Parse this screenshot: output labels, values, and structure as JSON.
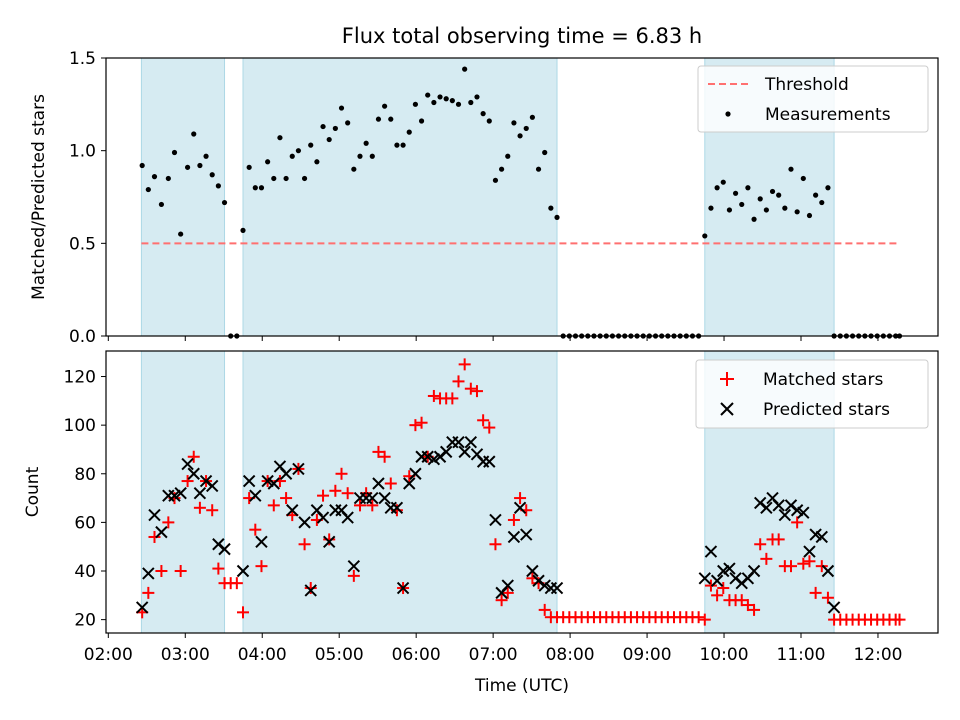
{
  "figure": {
    "title": "Flux total observing time = 6.83 h",
    "xlabel": "Time (UTC)",
    "x_tick_labels": [
      "02:00",
      "03:00",
      "04:00",
      "05:00",
      "06:00",
      "07:00",
      "08:00",
      "09:00",
      "10:00",
      "11:00",
      "12:00"
    ],
    "x_tick_values": [
      2,
      3,
      4,
      5,
      6,
      7,
      8,
      9,
      10,
      11,
      12
    ],
    "xlim": [
      1.97,
      12.78
    ],
    "shaded_intervals": [
      [
        2.43,
        3.51
      ],
      [
        3.75,
        7.83
      ],
      [
        9.75,
        11.43
      ]
    ],
    "shade_color": "#add8e6"
  },
  "chart_data": [
    {
      "type": "scatter",
      "name": "ratio-panel",
      "ylabel": "Matched/Predicted stars",
      "ylim": [
        0,
        1.5
      ],
      "y_ticks": [
        0.0,
        0.5,
        1.0,
        1.5
      ],
      "y_tick_labels": [
        "0.0",
        "0.5",
        "1.0",
        "1.5"
      ],
      "legend_position": "top-right",
      "threshold": {
        "name": "Threshold",
        "value": 0.5,
        "x_range": [
          2.43,
          12.28
        ],
        "color": "#ff7070"
      },
      "measurements": {
        "name": "Measurements",
        "color": "#000000",
        "x": [
          2.44,
          2.52,
          2.6,
          2.69,
          2.78,
          2.86,
          2.94,
          3.03,
          3.11,
          3.19,
          3.27,
          3.35,
          3.43,
          3.51,
          3.59,
          3.67,
          3.75,
          3.83,
          3.91,
          3.99,
          4.07,
          4.15,
          4.23,
          4.31,
          4.39,
          4.47,
          4.55,
          4.63,
          4.71,
          4.79,
          4.87,
          4.95,
          5.03,
          5.11,
          5.19,
          5.27,
          5.35,
          5.43,
          5.51,
          5.59,
          5.67,
          5.75,
          5.83,
          5.91,
          5.99,
          6.07,
          6.15,
          6.23,
          6.31,
          6.39,
          6.47,
          6.55,
          6.63,
          6.71,
          6.79,
          6.87,
          6.95,
          7.03,
          7.11,
          7.19,
          7.27,
          7.35,
          7.43,
          7.51,
          7.59,
          7.67,
          7.75,
          7.83,
          7.91,
          7.99,
          8.07,
          8.15,
          8.23,
          8.31,
          8.39,
          8.47,
          8.55,
          8.63,
          8.71,
          8.79,
          8.87,
          8.95,
          9.03,
          9.11,
          9.19,
          9.27,
          9.35,
          9.43,
          9.51,
          9.59,
          9.67,
          9.75,
          9.83,
          9.91,
          9.99,
          10.07,
          10.15,
          10.23,
          10.31,
          10.39,
          10.47,
          10.55,
          10.63,
          10.71,
          10.79,
          10.87,
          10.95,
          11.03,
          11.11,
          11.19,
          11.27,
          11.35,
          11.43,
          11.51,
          11.59,
          11.67,
          11.75,
          11.83,
          11.91,
          11.99,
          12.07,
          12.15,
          12.23,
          12.28
        ],
        "y": [
          0.92,
          0.79,
          0.86,
          0.71,
          0.85,
          0.99,
          0.55,
          0.91,
          1.09,
          0.92,
          0.97,
          0.87,
          0.81,
          0.72,
          0.0,
          0.0,
          0.57,
          0.91,
          0.8,
          0.8,
          0.94,
          0.85,
          1.07,
          0.85,
          0.97,
          1.0,
          0.85,
          1.03,
          0.94,
          1.13,
          1.06,
          1.12,
          1.23,
          1.15,
          0.9,
          0.97,
          1.04,
          0.97,
          1.17,
          1.24,
          1.17,
          1.03,
          1.03,
          1.1,
          1.25,
          1.16,
          1.3,
          1.26,
          1.29,
          1.28,
          1.27,
          1.25,
          1.44,
          1.26,
          1.29,
          1.2,
          1.16,
          0.84,
          0.9,
          0.97,
          1.15,
          1.08,
          1.12,
          1.18,
          0.9,
          0.99,
          0.69,
          0.64,
          0.0,
          0.0,
          0.0,
          0.0,
          0.0,
          0.0,
          0.0,
          0.0,
          0.0,
          0.0,
          0.0,
          0.0,
          0.0,
          0.0,
          0.0,
          0.0,
          0.0,
          0.0,
          0.0,
          0.0,
          0.0,
          0.0,
          0.0,
          0.54,
          0.69,
          0.8,
          0.83,
          0.68,
          0.77,
          0.71,
          0.8,
          0.63,
          0.74,
          0.68,
          0.78,
          0.76,
          0.69,
          0.9,
          0.67,
          0.85,
          0.65,
          0.76,
          0.72,
          0.8,
          0.0,
          0.0,
          0.0,
          0.0,
          0.0,
          0.0,
          0.0,
          0.0,
          0.0,
          0.0,
          0.0,
          0.0
        ]
      }
    },
    {
      "type": "scatter",
      "name": "count-panel",
      "ylabel": "Count",
      "ylim": [
        14.5,
        130.5
      ],
      "y_ticks": [
        20,
        40,
        60,
        80,
        100,
        120
      ],
      "y_tick_labels": [
        "20",
        "40",
        "60",
        "80",
        "100",
        "120"
      ],
      "legend_position": "top-right",
      "series": [
        {
          "name": "Matched stars",
          "marker": "+",
          "color": "#ff0000",
          "x": [
            2.44,
            2.52,
            2.6,
            2.69,
            2.78,
            2.86,
            2.94,
            3.03,
            3.11,
            3.19,
            3.27,
            3.35,
            3.43,
            3.51,
            3.59,
            3.67,
            3.75,
            3.83,
            3.91,
            3.99,
            4.07,
            4.15,
            4.23,
            4.31,
            4.39,
            4.47,
            4.55,
            4.63,
            4.71,
            4.79,
            4.87,
            4.95,
            5.03,
            5.11,
            5.19,
            5.27,
            5.35,
            5.43,
            5.51,
            5.59,
            5.67,
            5.75,
            5.83,
            5.91,
            5.99,
            6.07,
            6.15,
            6.23,
            6.31,
            6.39,
            6.47,
            6.55,
            6.63,
            6.71,
            6.79,
            6.87,
            6.95,
            7.03,
            7.11,
            7.19,
            7.27,
            7.35,
            7.43,
            7.51,
            7.59,
            7.67,
            7.75,
            7.83,
            7.91,
            7.99,
            8.07,
            8.15,
            8.23,
            8.31,
            8.39,
            8.47,
            8.55,
            8.63,
            8.71,
            8.79,
            8.87,
            8.95,
            9.03,
            9.11,
            9.19,
            9.27,
            9.35,
            9.43,
            9.51,
            9.59,
            9.67,
            9.75,
            9.83,
            9.91,
            9.99,
            10.07,
            10.15,
            10.23,
            10.31,
            10.39,
            10.47,
            10.55,
            10.63,
            10.71,
            10.79,
            10.87,
            10.95,
            11.03,
            11.11,
            11.19,
            11.27,
            11.35,
            11.43,
            11.51,
            11.59,
            11.67,
            11.75,
            11.83,
            11.91,
            11.99,
            12.07,
            12.15,
            12.23,
            12.28
          ],
          "y": [
            23,
            31,
            54,
            40,
            60,
            70,
            40,
            77,
            87,
            66,
            77,
            65,
            41,
            35,
            35,
            35,
            23,
            70,
            57,
            42,
            77,
            67,
            77,
            70,
            63,
            82,
            51,
            33,
            61,
            71,
            53,
            73,
            80,
            72,
            38,
            67,
            72,
            67,
            89,
            87,
            76,
            65,
            33,
            79,
            100,
            101,
            87,
            112,
            111,
            111,
            111,
            118,
            125,
            115,
            114,
            102,
            99,
            51,
            28,
            31,
            61,
            70,
            65,
            37,
            35,
            24,
            21,
            21,
            21,
            21,
            21,
            21,
            21,
            21,
            21,
            21,
            21,
            21,
            21,
            21,
            21,
            21,
            21,
            21,
            21,
            21,
            21,
            21,
            21,
            21,
            21,
            20,
            34,
            30,
            33,
            28,
            28,
            28,
            26,
            24,
            51,
            45,
            53,
            53,
            42,
            42,
            60,
            43,
            44,
            31,
            42,
            29,
            20,
            20,
            20,
            20,
            20,
            20,
            20,
            20,
            20,
            20,
            20,
            20
          ]
        },
        {
          "name": "Predicted stars",
          "marker": "x",
          "color": "#000000",
          "x": [
            2.44,
            2.52,
            2.6,
            2.69,
            2.78,
            2.86,
            2.94,
            3.03,
            3.11,
            3.19,
            3.27,
            3.35,
            3.43,
            3.51,
            3.75,
            3.83,
            3.91,
            3.99,
            4.07,
            4.15,
            4.23,
            4.31,
            4.39,
            4.47,
            4.55,
            4.63,
            4.71,
            4.79,
            4.87,
            4.95,
            5.03,
            5.11,
            5.19,
            5.27,
            5.35,
            5.43,
            5.51,
            5.59,
            5.67,
            5.75,
            5.83,
            5.91,
            5.99,
            6.07,
            6.15,
            6.23,
            6.31,
            6.39,
            6.47,
            6.55,
            6.63,
            6.71,
            6.79,
            6.87,
            6.95,
            7.03,
            7.11,
            7.19,
            7.27,
            7.35,
            7.43,
            7.51,
            7.59,
            7.67,
            7.75,
            7.83,
            9.75,
            9.83,
            9.91,
            9.99,
            10.07,
            10.15,
            10.23,
            10.31,
            10.39,
            10.47,
            10.55,
            10.63,
            10.71,
            10.79,
            10.87,
            10.95,
            11.03,
            11.11,
            11.19,
            11.27,
            11.35,
            11.43
          ],
          "y": [
            25,
            39,
            63,
            56,
            71,
            71,
            72,
            84,
            80,
            72,
            77,
            75,
            51,
            49,
            40,
            77,
            71,
            52,
            77,
            76,
            83,
            80,
            65,
            82,
            60,
            32,
            65,
            62,
            52,
            65,
            65,
            62,
            42,
            70,
            70,
            70,
            76,
            70,
            66,
            66,
            33,
            76,
            80,
            87,
            87,
            86,
            87,
            89,
            93,
            93,
            89,
            93,
            88,
            85,
            85,
            61,
            31,
            34,
            54,
            66,
            55,
            40,
            36,
            34,
            33,
            33,
            37,
            48,
            36,
            40,
            41,
            37,
            35,
            37,
            40,
            68,
            66,
            70,
            67,
            63,
            67,
            65,
            64,
            48,
            55,
            54,
            40,
            25
          ]
        }
      ]
    }
  ]
}
